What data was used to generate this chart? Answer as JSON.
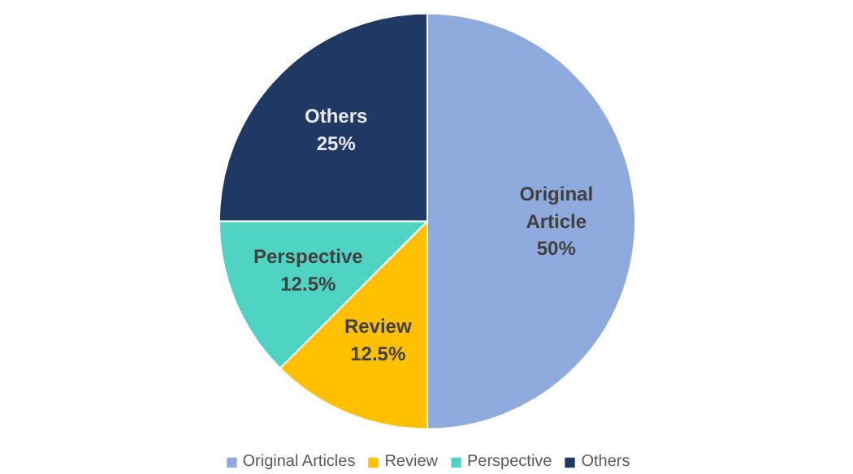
{
  "chart_data": {
    "type": "pie",
    "categories": [
      "Original Articles",
      "Review",
      "Perspective",
      "Others"
    ],
    "values": [
      50,
      12.5,
      12.5,
      25
    ],
    "colors": [
      "#8faadc",
      "#ffc000",
      "#4fd4c4",
      "#203864"
    ],
    "value_labels": [
      "Original\nArticle\n50%",
      "Review\n12.5%",
      "Perspective\n12.5%",
      "Others\n25%"
    ],
    "legend": "bottom"
  }
}
